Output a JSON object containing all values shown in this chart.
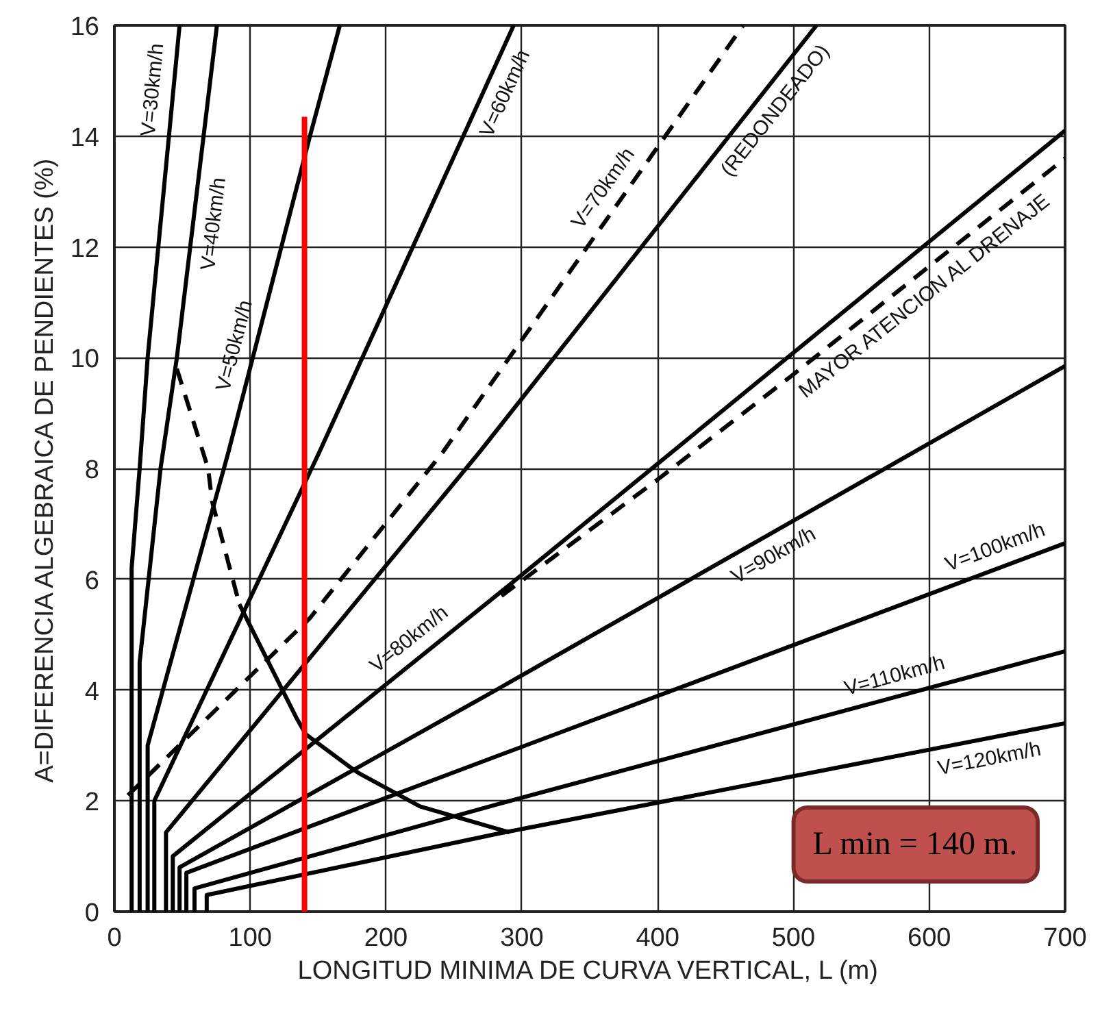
{
  "chart_data": {
    "type": "line",
    "xlabel": "LONGITUD MINIMA DE CURVA VERTICAL, L (m)",
    "ylabel": "A=DIFERENCIA ALGEBRAICA DE PENDIENTES (%)",
    "xlim": [
      0,
      700
    ],
    "ylim": [
      0,
      16
    ],
    "xticks": [
      0,
      100,
      200,
      300,
      400,
      500,
      600,
      700
    ],
    "yticks": [
      0,
      2,
      4,
      6,
      8,
      10,
      12,
      14,
      16
    ],
    "grid": true,
    "series": [
      {
        "name": "V=30km/h",
        "color": "#000000",
        "line_style": "solid",
        "x": [
          12.7,
          12.7,
          18.6,
          24.5,
          48
        ],
        "values": [
          0,
          6.2,
          8,
          10,
          16
        ]
      },
      {
        "name": "V=40km/h",
        "color": "#000000",
        "line_style": "solid",
        "x": [
          18.6,
          18.6,
          34,
          46,
          75.5
        ],
        "values": [
          0,
          4.5,
          8,
          10,
          16
        ]
      },
      {
        "name": "V=50km/h",
        "color": "#000000",
        "line_style": "solid",
        "x": [
          24.5,
          24.5,
          84,
          144,
          166
        ],
        "values": [
          0,
          3,
          8.3,
          14,
          16
        ]
      },
      {
        "name": "V=60km/h",
        "color": "#000000",
        "line_style": "solid",
        "x": [
          29.4,
          29.4,
          151,
          294
        ],
        "values": [
          0,
          2,
          8.3,
          16
        ]
      },
      {
        "name": "(REDONDEADO)",
        "color": "#000000",
        "line_style": "solid",
        "x": [
          38,
          38,
          269,
          517
        ],
        "values": [
          0,
          1.43,
          8.3,
          16
        ]
      },
      {
        "name": "V=70km/h",
        "color": "#000000",
        "line_style": "dashed",
        "x": [
          10,
          144,
          242,
          463
        ],
        "values": [
          2.1,
          5.3,
          8.3,
          16
        ]
      },
      {
        "name": "V=80km/h",
        "color": "#000000",
        "line_style": "solid",
        "x": [
          43,
          43,
          291,
          700
        ],
        "values": [
          0,
          1,
          5.9,
          14.1
        ]
      },
      {
        "name": "MAYOR ATENCION AL DRENAJE",
        "color": "#000000",
        "line_style": "dashed",
        "x": [
          285,
          400,
          500,
          700
        ],
        "values": [
          5.7,
          7.8,
          9.7,
          13.6
        ]
      },
      {
        "name": "V=90km/h",
        "color": "#000000",
        "line_style": "solid",
        "x": [
          48,
          48,
          281,
          700
        ],
        "values": [
          0,
          0.8,
          4,
          9.85
        ]
      },
      {
        "name": "V=100km/h",
        "color": "#000000",
        "line_style": "solid",
        "x": [
          53,
          53,
          281,
          700
        ],
        "values": [
          0,
          0.7,
          2.8,
          6.65
        ]
      },
      {
        "name": "V=110km/h",
        "color": "#000000",
        "line_style": "solid",
        "x": [
          59,
          59,
          281,
          700
        ],
        "values": [
          0,
          0.42,
          1.93,
          4.7
        ]
      },
      {
        "name": "V=120km/h",
        "color": "#000000",
        "line_style": "solid",
        "x": [
          68,
          68,
          281,
          700
        ],
        "values": [
          0,
          0.3,
          1.4,
          3.4
        ]
      },
      {
        "color": "#000000",
        "line_style": "dashed",
        "x": [
          46,
          69,
          72,
          92
        ],
        "values": [
          9.8,
          8,
          7.4,
          5.55
        ]
      },
      {
        "color": "#000000",
        "line_style": "solid",
        "x": [
          92,
          134,
          141,
          174,
          180,
          225,
          291
        ],
        "values": [
          5.55,
          3.5,
          3.2,
          2.6,
          2.5,
          1.9,
          1.43
        ]
      },
      {
        "color": "#ff0000",
        "line_style": "solid",
        "x": [
          140,
          140
        ],
        "values": [
          0,
          14.35
        ]
      }
    ],
    "annotations": [
      "L min = 140 m."
    ]
  }
}
